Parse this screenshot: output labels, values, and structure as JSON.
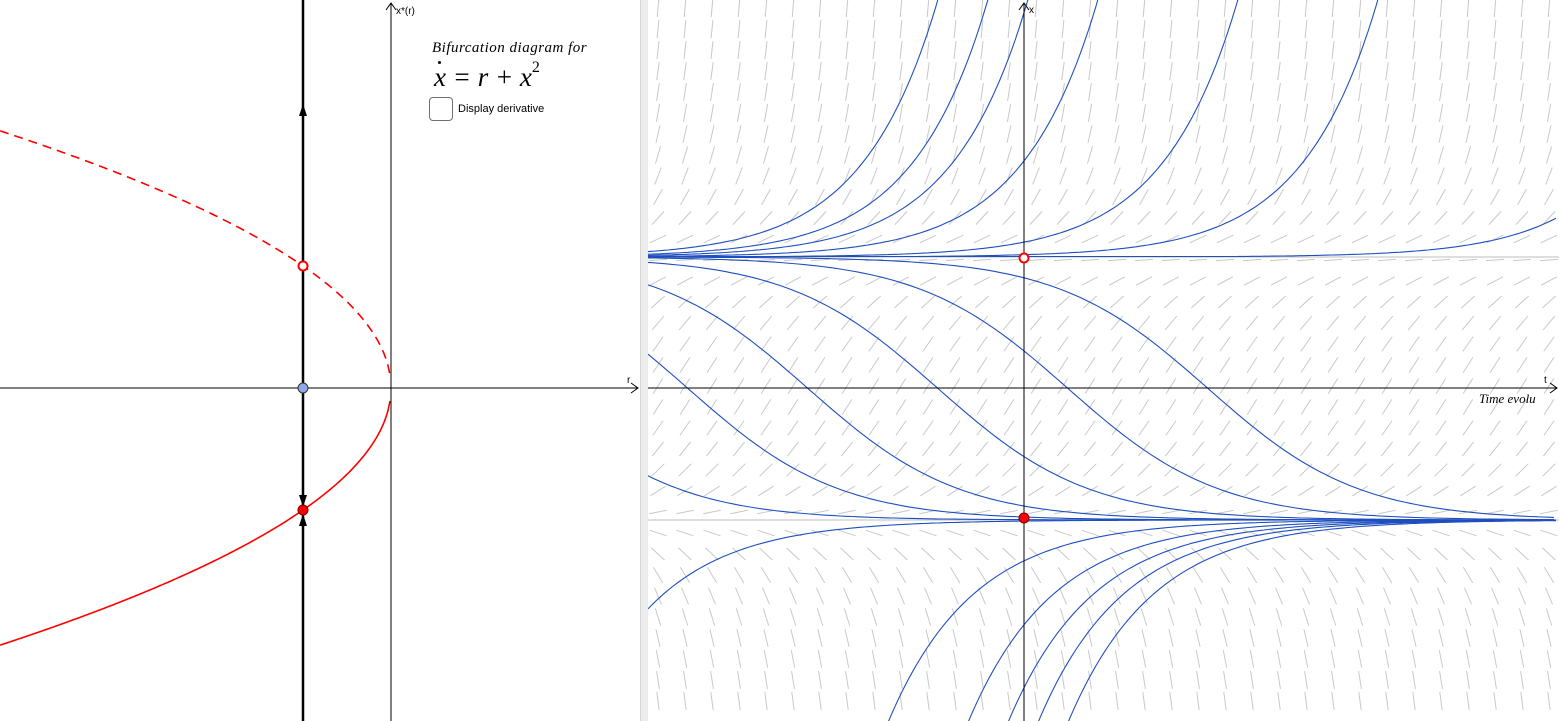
{
  "bifurcation": {
    "title": "Bifurcation diagram for",
    "equation": {
      "lhs": "x",
      "rhs": "= r + x",
      "exponent": "2"
    },
    "checkbox_label": "Display derivative",
    "checkbox_checked": false,
    "x_axis_label": "r",
    "y_axis_label": "x*(r)"
  },
  "time_panel": {
    "x_axis_label": "t",
    "y_axis_label": "x",
    "caption": "Time evolu"
  },
  "colors": {
    "stable_branch": "#ff0000",
    "unstable_branch": "#ff0000",
    "trajectory": "#1f4fbf",
    "slope_field": "#c8c8c8",
    "current_r_point": "#8fa8e8"
  }
}
